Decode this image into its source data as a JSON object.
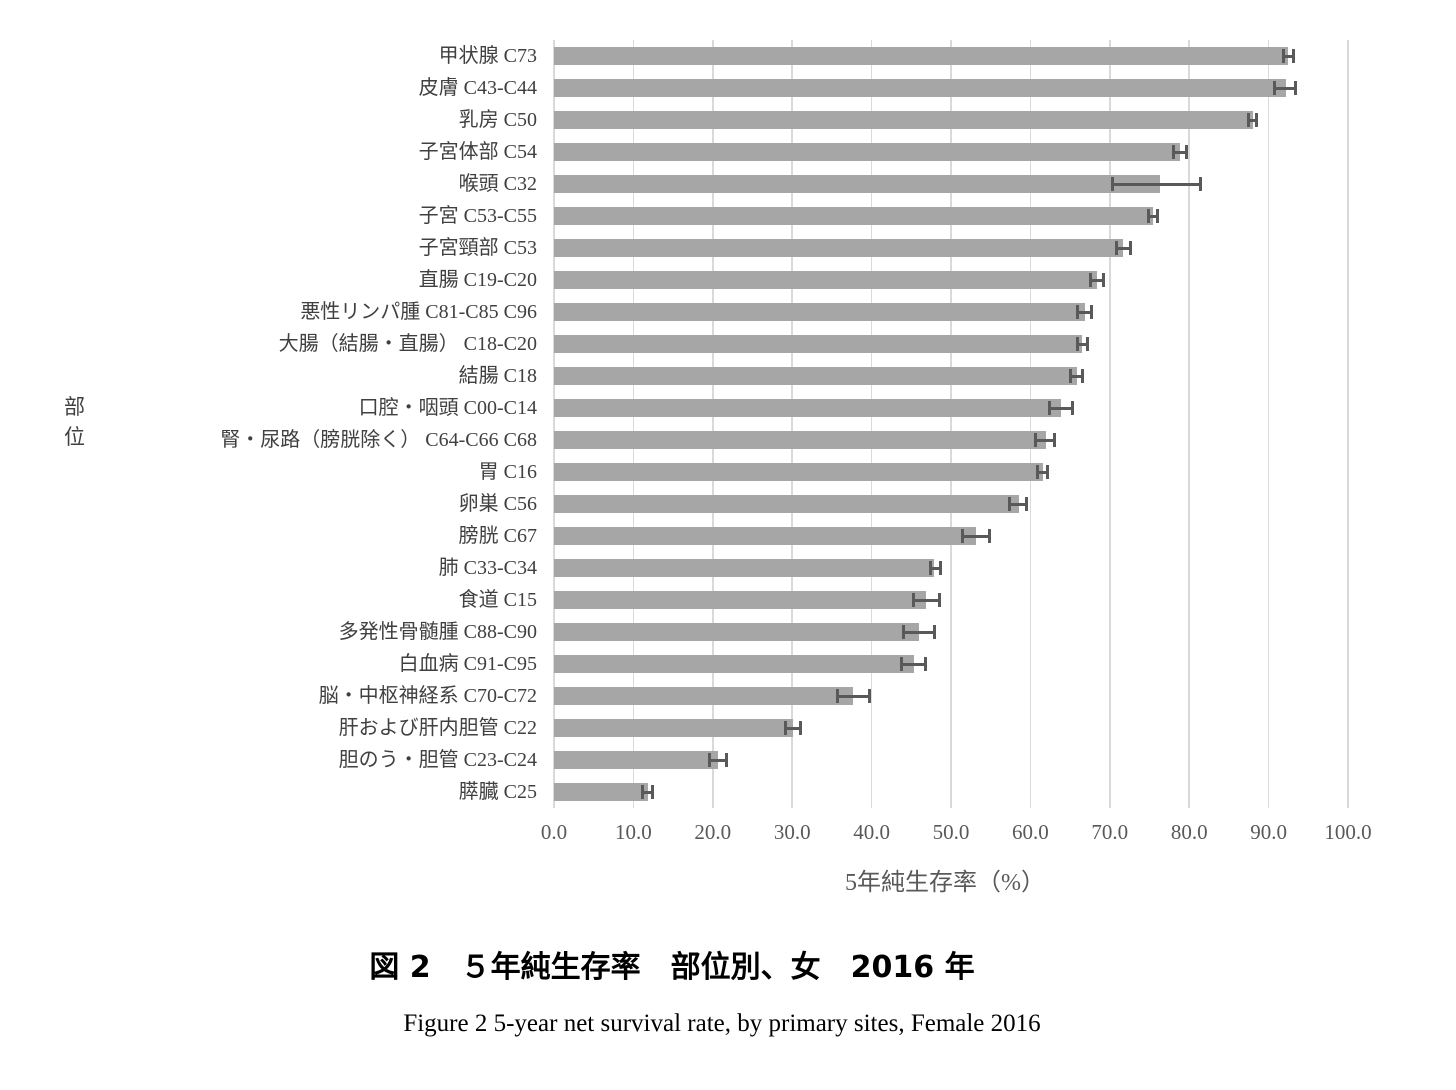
{
  "figure": {
    "caption_jp": "図 2　５年純生存率　部位別、女　2016 年",
    "caption_en": "Figure 2 5-year net survival rate, by primary sites, Female 2016"
  },
  "chart_data": {
    "type": "bar",
    "orientation": "horizontal",
    "title": "",
    "xlabel": "5年純生存率（%）",
    "ylabel": "部位",
    "xlim": [
      0,
      100
    ],
    "xticks": [
      0,
      10,
      20,
      30,
      40,
      50,
      60,
      70,
      80,
      90,
      100
    ],
    "xtick_labels": [
      "0.0",
      "10.0",
      "20.0",
      "30.0",
      "40.0",
      "50.0",
      "60.0",
      "70.0",
      "80.0",
      "90.0",
      "100.0"
    ],
    "grid": "vertical-gridlines-on",
    "legend": "none",
    "bar_color": "#a6a6a6",
    "grid_color": "#d9d9d9",
    "error_bar_color": "#595959",
    "categories": [
      "甲状腺 C73",
      "皮膚 C43-C44",
      "乳房 C50",
      "子宮体部 C54",
      "喉頭 C32",
      "子宮 C53-C55",
      "子宮頸部 C53",
      "直腸 C19-C20",
      "悪性リンパ腫 C81-C85 C96",
      "大腸（結腸・直腸） C18-C20",
      "結腸 C18",
      "口腔・咽頭 C00-C14",
      "腎・尿路（膀胱除く） C64-C66 C68",
      "胃 C16",
      "卵巣 C56",
      "膀胱 C67",
      "肺 C33-C34",
      "食道 C15",
      "多発性骨髄腫 C88-C90",
      "白血病 C91-C95",
      "脳・中枢神経系 C70-C72",
      "肝および肝内胆管 C22",
      "胆のう・胆管 C23-C24",
      "膵臓 C25"
    ],
    "values": [
      92.5,
      92.2,
      88.0,
      78.8,
      76.3,
      75.4,
      71.7,
      68.4,
      66.9,
      66.5,
      65.9,
      63.9,
      62.0,
      61.6,
      58.6,
      53.1,
      47.8,
      46.9,
      46.0,
      45.3,
      37.6,
      30.1,
      20.7,
      11.8
    ],
    "error_low": [
      91.9,
      90.7,
      87.5,
      78.0,
      70.3,
      74.9,
      70.8,
      67.6,
      65.9,
      65.9,
      65.1,
      62.4,
      60.6,
      60.9,
      57.4,
      51.4,
      47.4,
      45.3,
      44.0,
      43.8,
      35.7,
      29.2,
      19.6,
      11.1
    ],
    "error_high": [
      93.1,
      93.4,
      88.5,
      79.7,
      81.4,
      76.0,
      72.6,
      69.2,
      67.7,
      67.2,
      66.6,
      65.3,
      63.0,
      62.1,
      59.5,
      54.9,
      48.7,
      48.6,
      47.9,
      46.8,
      39.7,
      31.0,
      21.7,
      12.4
    ]
  }
}
